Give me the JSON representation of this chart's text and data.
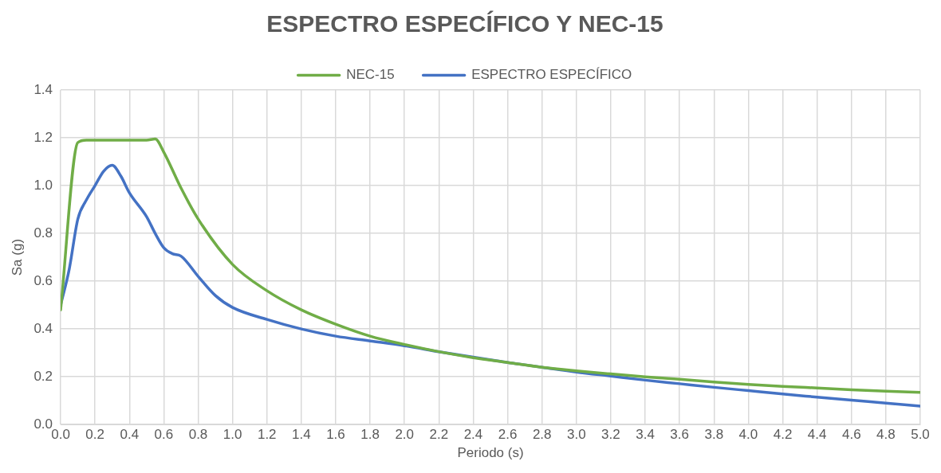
{
  "chart_data": {
    "type": "line",
    "title": "ESPECTRO ESPECÍFICO Y NEC-15",
    "xlabel": "Periodo (s)",
    "ylabel": "Sa (g)",
    "xlim": [
      0,
      5
    ],
    "xticks": [
      {
        "value": 0,
        "label": "0.0"
      },
      {
        "value": 0.2,
        "label": "0.2"
      },
      {
        "value": 0.4,
        "label": "0.4"
      },
      {
        "value": 0.6,
        "label": "0.6"
      },
      {
        "value": 0.8,
        "label": "0.8"
      },
      {
        "value": 1,
        "label": "1.0"
      },
      {
        "value": 1.2,
        "label": "1.2"
      },
      {
        "value": 1.4,
        "label": "1.4"
      },
      {
        "value": 1.6,
        "label": "1.6"
      },
      {
        "value": 1.8,
        "label": "1.8"
      },
      {
        "value": 2,
        "label": "2.0"
      },
      {
        "value": 2.2,
        "label": "2.2"
      },
      {
        "value": 2.4,
        "label": "2.4"
      },
      {
        "value": 2.6,
        "label": "2.6"
      },
      {
        "value": 2.8,
        "label": "2.8"
      },
      {
        "value": 3,
        "label": "3.0"
      },
      {
        "value": 3.2,
        "label": "3.2"
      },
      {
        "value": 3.4,
        "label": "3.4"
      },
      {
        "value": 3.6,
        "label": "3.6"
      },
      {
        "value": 3.8,
        "label": "3.8"
      },
      {
        "value": 4,
        "label": "4.0"
      },
      {
        "value": 4.2,
        "label": "4.2"
      },
      {
        "value": 4.4,
        "label": "4.4"
      },
      {
        "value": 4.6,
        "label": "4.6"
      },
      {
        "value": 4.8,
        "label": "4.8"
      },
      {
        "value": 5,
        "label": "5.0"
      }
    ],
    "ylim": [
      0,
      1.4
    ],
    "yticks": [
      {
        "value": 0,
        "label": "0.0"
      },
      {
        "value": 0.2,
        "label": "0.2"
      },
      {
        "value": 0.4,
        "label": "0.4"
      },
      {
        "value": 0.6,
        "label": "0.6"
      },
      {
        "value": 0.8,
        "label": "0.8"
      },
      {
        "value": 1,
        "label": "1.0"
      },
      {
        "value": 1.2,
        "label": "1.2"
      },
      {
        "value": 1.4,
        "label": "1.4"
      }
    ],
    "grid": true,
    "legend": "top",
    "marker": "none",
    "line_style": "solid",
    "series": [
      {
        "name": "NEC-15",
        "color": "#70ad47",
        "x": [
          0,
          0.1,
          0.15,
          0.5,
          0.55,
          0.6,
          0.7,
          0.8,
          1,
          1.2,
          1.4,
          1.6,
          1.8,
          2,
          2.2,
          2.4,
          2.6,
          2.8,
          3,
          3.2,
          3.4,
          3.6,
          3.8,
          4,
          4.2,
          4.4,
          4.6,
          4.8,
          5
        ],
        "values": [
          0.48,
          1.18,
          1.19,
          1.19,
          1.195,
          1.14,
          0.99,
          0.86,
          0.67,
          0.56,
          0.48,
          0.42,
          0.37,
          0.335,
          0.305,
          0.28,
          0.26,
          0.24,
          0.225,
          0.212,
          0.2,
          0.19,
          0.178,
          0.168,
          0.16,
          0.153,
          0.146,
          0.14,
          0.135
        ]
      },
      {
        "name": "ESPECTRO ESPECÍFICO",
        "color": "#4472c4",
        "x": [
          0,
          0.05,
          0.1,
          0.15,
          0.2,
          0.25,
          0.3,
          0.35,
          0.4,
          0.5,
          0.55,
          0.6,
          0.65,
          0.7,
          0.8,
          0.9,
          1,
          1.2,
          1.4,
          1.6,
          1.8,
          2,
          2.2,
          2.4,
          2.6,
          2.8,
          3,
          3.2,
          3.4,
          3.6,
          3.8,
          4,
          4.2,
          4.4,
          4.6,
          4.8,
          5
        ],
        "values": [
          0.5,
          0.65,
          0.86,
          0.94,
          1.0,
          1.06,
          1.085,
          1.04,
          0.97,
          0.87,
          0.8,
          0.74,
          0.715,
          0.705,
          0.62,
          0.54,
          0.49,
          0.44,
          0.4,
          0.37,
          0.35,
          0.33,
          0.305,
          0.282,
          0.26,
          0.24,
          0.22,
          0.203,
          0.186,
          0.171,
          0.156,
          0.142,
          0.128,
          0.115,
          0.102,
          0.09,
          0.077
        ]
      }
    ]
  }
}
